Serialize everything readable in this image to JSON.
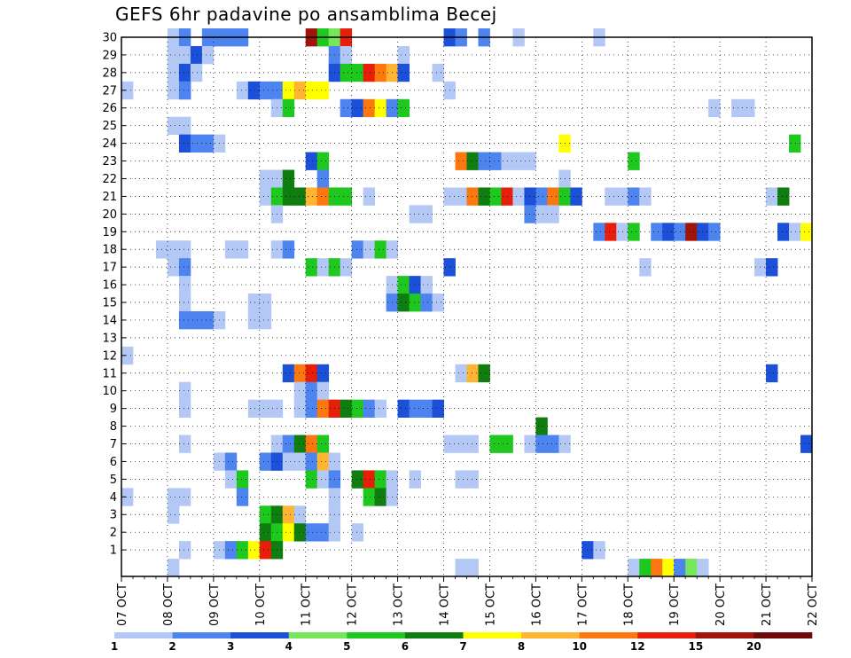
{
  "chart_data": {
    "type": "heatmap",
    "title": "GEFS 6hr padavine po ansamblima Becej",
    "xlabel": "",
    "ylabel": "",
    "x_axis": {
      "tick_labels": [
        "07 OCT",
        "08 OCT",
        "09 OCT",
        "10 OCT",
        "11 OCT",
        "12 OCT",
        "13 OCT",
        "14 OCT",
        "15 OCT",
        "16 OCT",
        "17 OCT",
        "18 OCT",
        "19 OCT",
        "20 OCT",
        "21 OCT",
        "22 OCT"
      ],
      "range_days": [
        0,
        15
      ],
      "step_hours": 6
    },
    "y_axis": {
      "tick_labels": [
        "1",
        "2",
        "3",
        "4",
        "5",
        "6",
        "7",
        "8",
        "9",
        "10",
        "11",
        "12",
        "13",
        "14",
        "15",
        "16",
        "17",
        "18",
        "19",
        "20",
        "21",
        "22",
        "23",
        "24",
        "25",
        "26",
        "27",
        "28",
        "29",
        "30"
      ],
      "range": [
        0,
        30
      ]
    },
    "grid": true,
    "colorbar": {
      "position": "bottom",
      "labels": [
        "1",
        "2",
        "3",
        "4",
        "5",
        "6",
        "7",
        "8",
        "10",
        "12",
        "15",
        "20"
      ],
      "colors": [
        "#b4c8f5",
        "#4d84f0",
        "#1c50d8",
        "#78e65a",
        "#1ec81e",
        "#0f7d0f",
        "#ffff00",
        "#ffb432",
        "#fa780f",
        "#e61e0a",
        "#a0140a",
        "#6e0a0a"
      ]
    },
    "cell_value_unit": "color class index (0 = 1-2 mm ... 11 = >20 mm)",
    "cells_xs_y_c": [
      [
        4,
        30,
        0
      ],
      [
        5,
        30,
        1
      ],
      [
        7,
        30,
        1
      ],
      [
        8,
        30,
        1
      ],
      [
        9,
        30,
        1
      ],
      [
        10,
        30,
        1
      ],
      [
        16,
        30,
        10
      ],
      [
        17,
        30,
        4
      ],
      [
        18,
        30,
        3
      ],
      [
        19,
        30,
        9
      ],
      [
        28,
        30,
        2
      ],
      [
        29,
        30,
        1
      ],
      [
        31,
        30,
        1
      ],
      [
        34,
        30,
        0
      ],
      [
        41,
        30,
        0
      ],
      [
        4,
        29,
        0
      ],
      [
        5,
        29,
        0
      ],
      [
        6,
        29,
        2
      ],
      [
        7,
        29,
        0
      ],
      [
        18,
        29,
        1
      ],
      [
        19,
        29,
        0
      ],
      [
        24,
        29,
        0
      ],
      [
        4,
        28,
        0
      ],
      [
        5,
        28,
        2
      ],
      [
        6,
        28,
        0
      ],
      [
        18,
        28,
        2
      ],
      [
        19,
        28,
        4
      ],
      [
        20,
        28,
        4
      ],
      [
        21,
        28,
        9
      ],
      [
        22,
        28,
        8
      ],
      [
        23,
        28,
        7
      ],
      [
        24,
        28,
        2
      ],
      [
        27,
        28,
        0
      ],
      [
        0,
        27,
        0
      ],
      [
        5,
        27,
        1
      ],
      [
        4,
        27,
        0
      ],
      [
        5,
        27,
        1
      ],
      [
        10,
        27,
        0
      ],
      [
        11,
        27,
        2
      ],
      [
        12,
        27,
        1
      ],
      [
        13,
        27,
        1
      ],
      [
        14,
        27,
        6
      ],
      [
        15,
        27,
        7
      ],
      [
        16,
        27,
        6
      ],
      [
        17,
        27,
        6
      ],
      [
        28,
        27,
        0
      ],
      [
        13,
        26,
        0
      ],
      [
        14,
        26,
        4
      ],
      [
        19,
        26,
        1
      ],
      [
        20,
        26,
        2
      ],
      [
        21,
        26,
        8
      ],
      [
        22,
        26,
        6
      ],
      [
        23,
        26,
        1
      ],
      [
        24,
        26,
        4
      ],
      [
        51,
        26,
        0
      ],
      [
        53,
        26,
        0
      ],
      [
        54,
        26,
        0
      ],
      [
        5,
        25,
        0
      ],
      [
        4,
        25,
        0
      ],
      [
        5,
        24,
        2
      ],
      [
        6,
        24,
        1
      ],
      [
        7,
        24,
        1
      ],
      [
        8,
        24,
        0
      ],
      [
        38,
        24,
        6
      ],
      [
        58,
        24,
        4
      ],
      [
        16,
        23,
        2
      ],
      [
        17,
        23,
        4
      ],
      [
        29,
        23,
        8
      ],
      [
        30,
        23,
        5
      ],
      [
        31,
        23,
        1
      ],
      [
        32,
        23,
        1
      ],
      [
        33,
        23,
        0
      ],
      [
        34,
        23,
        0
      ],
      [
        35,
        23,
        0
      ],
      [
        44,
        23,
        4
      ],
      [
        12,
        22,
        0
      ],
      [
        13,
        22,
        0
      ],
      [
        14,
        22,
        5
      ],
      [
        17,
        22,
        1
      ],
      [
        38,
        22,
        0
      ],
      [
        12,
        21,
        0
      ],
      [
        13,
        21,
        4
      ],
      [
        14,
        21,
        5
      ],
      [
        15,
        21,
        5
      ],
      [
        16,
        21,
        7
      ],
      [
        17,
        21,
        8
      ],
      [
        18,
        21,
        4
      ],
      [
        19,
        21,
        4
      ],
      [
        21,
        21,
        0
      ],
      [
        28,
        21,
        0
      ],
      [
        29,
        21,
        0
      ],
      [
        30,
        21,
        8
      ],
      [
        31,
        21,
        5
      ],
      [
        32,
        21,
        4
      ],
      [
        33,
        21,
        9
      ],
      [
        34,
        21,
        0
      ],
      [
        35,
        21,
        2
      ],
      [
        36,
        21,
        1
      ],
      [
        37,
        21,
        8
      ],
      [
        38,
        21,
        4
      ],
      [
        39,
        21,
        2
      ],
      [
        42,
        21,
        0
      ],
      [
        43,
        21,
        0
      ],
      [
        44,
        21,
        1
      ],
      [
        45,
        21,
        0
      ],
      [
        56,
        21,
        0
      ],
      [
        57,
        21,
        5
      ],
      [
        13,
        20,
        0
      ],
      [
        25,
        20,
        0
      ],
      [
        26,
        20,
        0
      ],
      [
        35,
        20,
        1
      ],
      [
        36,
        20,
        0
      ],
      [
        37,
        20,
        0
      ],
      [
        41,
        19,
        1
      ],
      [
        42,
        19,
        9
      ],
      [
        43,
        19,
        0
      ],
      [
        44,
        19,
        4
      ],
      [
        46,
        19,
        1
      ],
      [
        47,
        19,
        2
      ],
      [
        48,
        19,
        1
      ],
      [
        49,
        19,
        10
      ],
      [
        50,
        19,
        2
      ],
      [
        51,
        19,
        1
      ],
      [
        57,
        19,
        2
      ],
      [
        58,
        19,
        0
      ],
      [
        59,
        19,
        6
      ],
      [
        3,
        18,
        0
      ],
      [
        4,
        18,
        0
      ],
      [
        5,
        18,
        0
      ],
      [
        9,
        18,
        0
      ],
      [
        10,
        18,
        0
      ],
      [
        13,
        18,
        0
      ],
      [
        14,
        18,
        1
      ],
      [
        20,
        18,
        1
      ],
      [
        21,
        18,
        0
      ],
      [
        22,
        18,
        4
      ],
      [
        23,
        18,
        0
      ],
      [
        4,
        17,
        0
      ],
      [
        5,
        17,
        1
      ],
      [
        16,
        17,
        4
      ],
      [
        17,
        17,
        0
      ],
      [
        18,
        17,
        4
      ],
      [
        19,
        17,
        0
      ],
      [
        28,
        17,
        2
      ],
      [
        45,
        17,
        0
      ],
      [
        55,
        17,
        0
      ],
      [
        56,
        17,
        2
      ],
      [
        5,
        16,
        0
      ],
      [
        23,
        16,
        0
      ],
      [
        24,
        16,
        4
      ],
      [
        25,
        16,
        2
      ],
      [
        26,
        16,
        0
      ],
      [
        5,
        15,
        0
      ],
      [
        23,
        15,
        1
      ],
      [
        24,
        15,
        5
      ],
      [
        25,
        15,
        4
      ],
      [
        26,
        15,
        1
      ],
      [
        27,
        15,
        0
      ],
      [
        11,
        15,
        0
      ],
      [
        12,
        15,
        0
      ],
      [
        5,
        14,
        1
      ],
      [
        6,
        14,
        1
      ],
      [
        7,
        14,
        1
      ],
      [
        8,
        14,
        0
      ],
      [
        11,
        14,
        0
      ],
      [
        12,
        14,
        0
      ],
      [
        0,
        12,
        0
      ],
      [
        14,
        11,
        2
      ],
      [
        15,
        11,
        8
      ],
      [
        16,
        11,
        9
      ],
      [
        17,
        11,
        2
      ],
      [
        29,
        11,
        0
      ],
      [
        30,
        11,
        7
      ],
      [
        31,
        11,
        5
      ],
      [
        56,
        11,
        2
      ],
      [
        5,
        10,
        0
      ],
      [
        15,
        10,
        0
      ],
      [
        16,
        10,
        1
      ],
      [
        17,
        10,
        0
      ],
      [
        5,
        9,
        0
      ],
      [
        11,
        9,
        0
      ],
      [
        12,
        9,
        0
      ],
      [
        13,
        9,
        0
      ],
      [
        15,
        9,
        0
      ],
      [
        16,
        9,
        1
      ],
      [
        17,
        9,
        8
      ],
      [
        18,
        9,
        9
      ],
      [
        19,
        9,
        5
      ],
      [
        20,
        9,
        4
      ],
      [
        21,
        9,
        1
      ],
      [
        22,
        9,
        0
      ],
      [
        24,
        9,
        2
      ],
      [
        25,
        9,
        1
      ],
      [
        26,
        9,
        1
      ],
      [
        27,
        9,
        2
      ],
      [
        36,
        8,
        5
      ],
      [
        5,
        7,
        0
      ],
      [
        13,
        7,
        0
      ],
      [
        14,
        7,
        1
      ],
      [
        15,
        7,
        5
      ],
      [
        16,
        7,
        8
      ],
      [
        17,
        7,
        4
      ],
      [
        28,
        7,
        0
      ],
      [
        29,
        7,
        0
      ],
      [
        30,
        7,
        0
      ],
      [
        32,
        7,
        4
      ],
      [
        33,
        7,
        4
      ],
      [
        35,
        7,
        0
      ],
      [
        36,
        7,
        1
      ],
      [
        37,
        7,
        1
      ],
      [
        38,
        7,
        0
      ],
      [
        59,
        7,
        2
      ],
      [
        8,
        6,
        0
      ],
      [
        9,
        6,
        1
      ],
      [
        12,
        6,
        1
      ],
      [
        13,
        6,
        2
      ],
      [
        14,
        6,
        0
      ],
      [
        15,
        6,
        0
      ],
      [
        16,
        6,
        1
      ],
      [
        17,
        6,
        7
      ],
      [
        18,
        6,
        0
      ],
      [
        9,
        5,
        0
      ],
      [
        10,
        5,
        4
      ],
      [
        16,
        5,
        4
      ],
      [
        17,
        5,
        0
      ],
      [
        18,
        5,
        1
      ],
      [
        20,
        5,
        5
      ],
      [
        21,
        5,
        9
      ],
      [
        22,
        5,
        4
      ],
      [
        23,
        5,
        0
      ],
      [
        25,
        5,
        0
      ],
      [
        29,
        5,
        0
      ],
      [
        30,
        5,
        0
      ],
      [
        0,
        4,
        0
      ],
      [
        4,
        4,
        0
      ],
      [
        5,
        4,
        0
      ],
      [
        10,
        4,
        1
      ],
      [
        18,
        4,
        0
      ],
      [
        21,
        4,
        4
      ],
      [
        22,
        4,
        5
      ],
      [
        23,
        4,
        0
      ],
      [
        4,
        3,
        0
      ],
      [
        12,
        3,
        4
      ],
      [
        13,
        3,
        5
      ],
      [
        14,
        3,
        7
      ],
      [
        15,
        3,
        0
      ],
      [
        18,
        3,
        0
      ],
      [
        12,
        2,
        5
      ],
      [
        13,
        2,
        4
      ],
      [
        14,
        2,
        6
      ],
      [
        15,
        2,
        5
      ],
      [
        16,
        2,
        1
      ],
      [
        17,
        2,
        1
      ],
      [
        18,
        2,
        0
      ],
      [
        20,
        2,
        0
      ],
      [
        5,
        1,
        0
      ],
      [
        8,
        1,
        0
      ],
      [
        9,
        1,
        1
      ],
      [
        10,
        1,
        4
      ],
      [
        11,
        1,
        6
      ],
      [
        12,
        1,
        9
      ],
      [
        13,
        1,
        5
      ],
      [
        40,
        1,
        2
      ],
      [
        41,
        1,
        0
      ],
      [
        4,
        0,
        0
      ],
      [
        29,
        0,
        0
      ],
      [
        30,
        0,
        0
      ],
      [
        44,
        0,
        0
      ],
      [
        45,
        0,
        4
      ],
      [
        46,
        0,
        8
      ],
      [
        47,
        0,
        6
      ],
      [
        48,
        0,
        1
      ],
      [
        49,
        0,
        3
      ],
      [
        50,
        0,
        0
      ]
    ]
  }
}
